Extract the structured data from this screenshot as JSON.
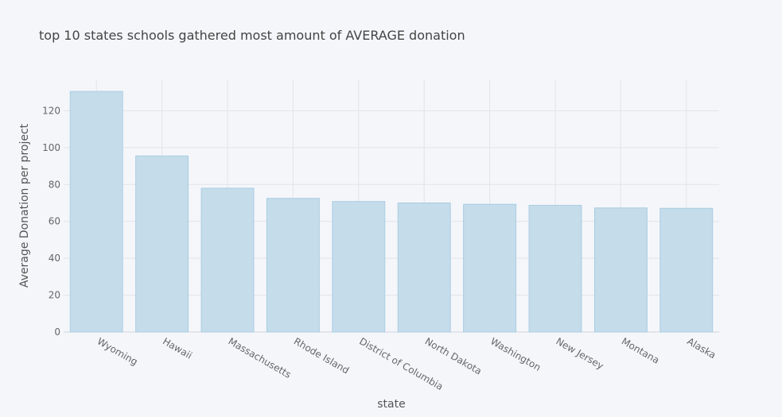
{
  "chart_data": {
    "type": "bar",
    "title": "top 10 states schools gathered most amount of AVERAGE donation",
    "xlabel": "state",
    "ylabel": "Average Donation per project",
    "categories": [
      "Wyoming",
      "Hawaii",
      "Massachusetts",
      "Rhode Island",
      "District of Columbia",
      "North Dakota",
      "Washington",
      "New Jersey",
      "Montana",
      "Alaska"
    ],
    "values": [
      130.5,
      95.5,
      78.0,
      72.5,
      70.8,
      70.0,
      69.3,
      68.7,
      67.3,
      67.1
    ],
    "ylim": [
      0,
      137
    ],
    "yticks": [
      0,
      20,
      40,
      60,
      80,
      100,
      120
    ],
    "grid": true,
    "legend": "none",
    "colors": {
      "bar_fill": "#c5dcea",
      "bar_stroke": "#a9cde2",
      "background": "#f5f6fa"
    }
  }
}
